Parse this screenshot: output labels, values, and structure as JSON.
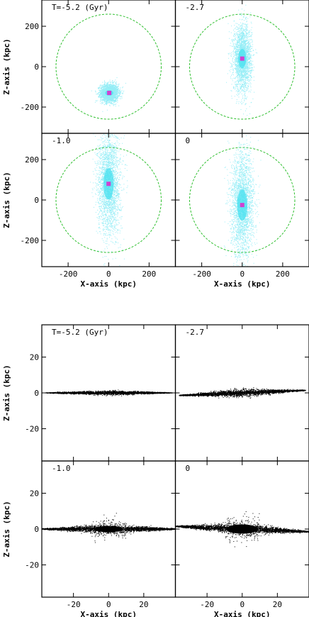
{
  "chart_data": [
    {
      "type": "scatter",
      "layout": "2x2 panel grid",
      "xlabel": "X-axis (kpc)",
      "ylabel": "Z-axis (kpc)",
      "xlim": [
        -330,
        330
      ],
      "ylim": [
        -330,
        330
      ],
      "xticks": [
        -200,
        0,
        200
      ],
      "yticks": [
        -200,
        0,
        200
      ],
      "grid": false,
      "point_color": "#40e0f0",
      "marker_color": "#d040d0",
      "circle_color": "#30c030",
      "circle_radius": 260,
      "panels": [
        {
          "label": "T=-5.2 (Gyr)",
          "center": [
            3,
            -130
          ],
          "spread": [
            22,
            22
          ]
        },
        {
          "label": "-2.7",
          "center": [
            0,
            40
          ],
          "spread": [
            22,
            80
          ]
        },
        {
          "label": "-1.0",
          "center": [
            0,
            80
          ],
          "spread": [
            28,
            130
          ]
        },
        {
          "label": "0",
          "center": [
            0,
            -25
          ],
          "spread": [
            28,
            130
          ]
        }
      ]
    },
    {
      "type": "scatter",
      "layout": "2x2 panel grid",
      "xlabel": "X-axis (kpc)",
      "ylabel": "Z-axis (kpc)",
      "xlim": [
        -38,
        38
      ],
      "ylim": [
        -38,
        38
      ],
      "xticks": [
        -20,
        0,
        20
      ],
      "yticks": [
        -20,
        0,
        20
      ],
      "grid": false,
      "point_color": "#000000",
      "panels": [
        {
          "label": "T=-5.2 (Gyr)",
          "half_length": 36,
          "thickness": 0.6,
          "tilt": 0,
          "bulge": 0
        },
        {
          "label": "-2.7",
          "half_length": 36,
          "thickness": 1.0,
          "tilt": 0.04,
          "bulge": 0.6
        },
        {
          "label": "-1.0",
          "half_length": 38,
          "thickness": 1.2,
          "tilt": 0,
          "bulge": 2.2
        },
        {
          "label": "0",
          "half_length": 38,
          "thickness": 1.4,
          "tilt": -0.04,
          "bulge": 3.2
        }
      ]
    }
  ]
}
